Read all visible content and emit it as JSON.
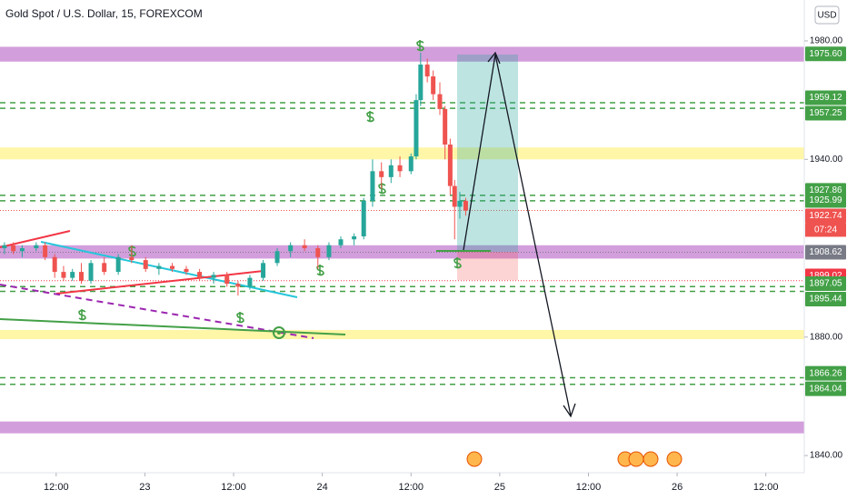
{
  "chart_data": {
    "type": "candlestick",
    "title": "Gold Spot / U.S. Dollar, 15, FOREXCOM",
    "currency": "USD",
    "countdown": "07:24",
    "up_color": "#26a69a",
    "down_color": "#ef5350",
    "ylim": [
      1834.2,
      1993.8
    ],
    "yticks": [
      {
        "value": 1980,
        "label": "1980.00"
      },
      {
        "value": 1940,
        "label": "1940.00"
      },
      {
        "value": 1880,
        "label": "1880.00"
      },
      {
        "value": 1840,
        "label": "1840.00"
      }
    ],
    "xlim": [
      4.4,
      113.2
    ],
    "xticks": [
      {
        "value": 12,
        "label": "12:00"
      },
      {
        "value": 24,
        "label": "23"
      },
      {
        "value": 36,
        "label": "12:00"
      },
      {
        "value": 48,
        "label": "24"
      },
      {
        "value": 60,
        "label": "12:00"
      },
      {
        "value": 72,
        "label": "25"
      },
      {
        "value": 84,
        "label": "12:00"
      },
      {
        "value": 96,
        "label": "26"
      },
      {
        "value": 108,
        "label": "12:00"
      }
    ],
    "x": [
      5.0,
      6.2,
      7.4,
      9.3,
      10.5,
      11.8,
      13.0,
      14.2,
      15.4,
      16.7,
      18.5,
      20.4,
      22.2,
      24.1,
      25.9,
      27.7,
      29.6,
      31.4,
      33.3,
      35.1,
      36.6,
      38.2,
      40.0,
      41.9,
      43.7,
      45.6,
      47.4,
      48.9,
      50.5,
      52.3,
      53.6,
      54.8,
      56.0,
      57.3,
      58.5,
      60.0,
      60.7,
      61.3,
      62.2,
      63.0,
      63.9,
      64.6,
      65.3,
      65.9,
      66.6,
      67.4
    ],
    "open": [
      1910,
      1911,
      1909,
      1910,
      1911,
      1907,
      1902,
      1900,
      1902,
      1899,
      1905,
      1902,
      1907,
      1906,
      1903,
      1904,
      1903,
      1902,
      1900,
      1901,
      1898,
      1897,
      1900,
      1905,
      1909,
      1911,
      1910,
      1907,
      1911,
      1913,
      1914,
      1926,
      1936,
      1934,
      1938,
      1936,
      1941,
      1960,
      1972,
      1968,
      1962,
      1957,
      1945,
      1931,
      1924,
      1926
    ],
    "high": [
      1912,
      1912,
      1911,
      1912,
      1912,
      1908,
      1904,
      1903,
      1905,
      1906,
      1907,
      1908,
      1911,
      1907,
      1905,
      1905,
      1904,
      1903,
      1902,
      1902,
      1899,
      1901,
      1906,
      1910,
      1912,
      1913,
      1911,
      1912,
      1914,
      1915,
      1927,
      1940,
      1939,
      1940,
      1941,
      1942,
      1962,
      1976,
      1974,
      1970,
      1966,
      1958,
      1947,
      1933,
      1929,
      1927
    ],
    "low": [
      1908,
      1908,
      1907,
      1909,
      1906,
      1900,
      1899,
      1899,
      1898,
      1898,
      1901,
      1901,
      1905,
      1902,
      1901,
      1902,
      1901,
      1899,
      1898,
      1897,
      1894,
      1896,
      1899,
      1904,
      1907,
      1909,
      1903,
      1906,
      1910,
      1911,
      1913,
      1924,
      1930,
      1932,
      1934,
      1935,
      1940,
      1958,
      1966,
      1960,
      1955,
      1940,
      1928,
      1913,
      1920,
      1921
    ],
    "close": [
      1911,
      1909,
      1910,
      1911,
      1907,
      1902,
      1900,
      1902,
      1899,
      1905,
      1902,
      1907,
      1906,
      1903,
      1904,
      1903,
      1902,
      1900,
      1901,
      1898,
      1897,
      1900,
      1905,
      1909,
      1911,
      1910,
      1907,
      1911,
      1913,
      1914,
      1926,
      1936,
      1934,
      1938,
      1936,
      1941,
      1960,
      1972,
      1968,
      1962,
      1957,
      1945,
      1931,
      1924,
      1926,
      1922.74
    ],
    "zones": [
      {
        "low": 1973,
        "high": 1978,
        "color": "#ce93d8"
      },
      {
        "low": 1940,
        "high": 1944,
        "color": "#fff59d"
      },
      {
        "low": 1906.5,
        "high": 1911,
        "color": "#ce93d8"
      },
      {
        "low": 1879.3,
        "high": 1882.4,
        "color": "#fff59d"
      },
      {
        "low": 1847.5,
        "high": 1851.5,
        "color": "#ce93d8"
      }
    ],
    "levels": [
      {
        "value": 1975.6,
        "label": "1975.60",
        "color": "#43a047",
        "dashed": false
      },
      {
        "value": 1959.12,
        "label": "1959.12",
        "color": "#43a047",
        "dashed": true
      },
      {
        "value": 1957.25,
        "label": "1957.25",
        "color": "#43a047",
        "dashed": true
      },
      {
        "value": 1927.86,
        "label": "1927.86",
        "color": "#43a047",
        "dashed": true
      },
      {
        "value": 1925.99,
        "label": "1925.99",
        "color": "#43a047",
        "dashed": true
      },
      {
        "value": 1922.74,
        "label": "1922.74",
        "color": "#ef5350",
        "dashed": false
      },
      {
        "value": 1908.62,
        "label": "1908.62",
        "color": "#787b86",
        "dashed": false
      },
      {
        "value": 1899.02,
        "label": "1899.02",
        "color": "#f23645",
        "dashed": false
      },
      {
        "value": 1897.05,
        "label": "1897.05",
        "color": "#43a047",
        "dashed": true
      },
      {
        "value": 1895.44,
        "label": "1895.44",
        "color": "#43a047",
        "dashed": true
      },
      {
        "value": 1866.26,
        "label": "1866.26",
        "color": "#43a047",
        "dashed": true
      },
      {
        "value": 1864.04,
        "label": "1864.04",
        "color": "#43a047",
        "dashed": true
      }
    ]
  }
}
